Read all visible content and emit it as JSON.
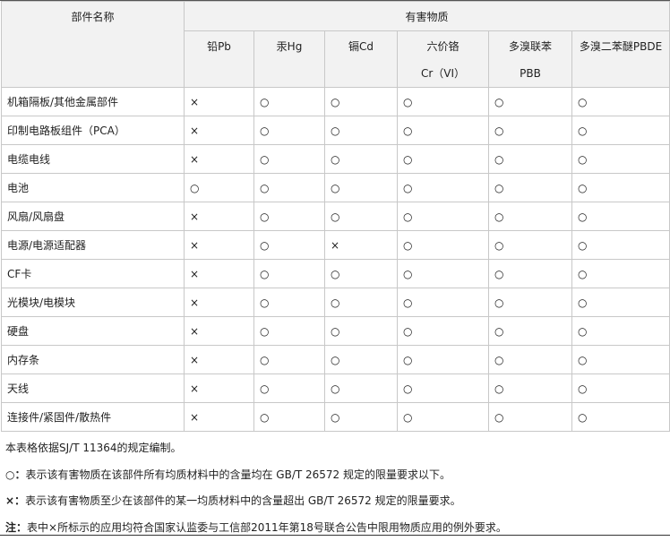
{
  "table": {
    "col_component": "部件名称",
    "col_group": "有害物质",
    "substances": [
      {
        "line1": "铅Pb",
        "line2": ""
      },
      {
        "line1": "汞Hg",
        "line2": ""
      },
      {
        "line1": "镉Cd",
        "line2": ""
      },
      {
        "line1": "六价铬",
        "line2": "Cr（VI）"
      },
      {
        "line1": "多溴联苯",
        "line2": "PBB"
      },
      {
        "line1": "多溴二苯醚PBDE",
        "line2": ""
      }
    ],
    "rows": [
      {
        "name": "机箱隔板/其他金属部件",
        "v": [
          "×",
          "○",
          "○",
          "○",
          "○",
          "○"
        ]
      },
      {
        "name": "印制电路板组件（PCA）",
        "v": [
          "×",
          "○",
          "○",
          "○",
          "○",
          "○"
        ]
      },
      {
        "name": "电缆电线",
        "v": [
          "×",
          "○",
          "○",
          "○",
          "○",
          "○"
        ]
      },
      {
        "name": "电池",
        "v": [
          "○",
          "○",
          "○",
          "○",
          "○",
          "○"
        ]
      },
      {
        "name": "风扇/风扇盘",
        "v": [
          "×",
          "○",
          "○",
          "○",
          "○",
          "○"
        ]
      },
      {
        "name": "电源/电源适配器",
        "v": [
          "×",
          "○",
          "×",
          "○",
          "○",
          "○"
        ]
      },
      {
        "name": "CF卡",
        "v": [
          "×",
          "○",
          "○",
          "○",
          "○",
          "○"
        ]
      },
      {
        "name": "光模块/电模块",
        "v": [
          "×",
          "○",
          "○",
          "○",
          "○",
          "○"
        ]
      },
      {
        "name": "硬盘",
        "v": [
          "×",
          "○",
          "○",
          "○",
          "○",
          "○"
        ]
      },
      {
        "name": "内存条",
        "v": [
          "×",
          "○",
          "○",
          "○",
          "○",
          "○"
        ]
      },
      {
        "name": "天线",
        "v": [
          "×",
          "○",
          "○",
          "○",
          "○",
          "○"
        ]
      },
      {
        "name": "连接件/紧固件/散热件",
        "v": [
          "×",
          "○",
          "○",
          "○",
          "○",
          "○"
        ]
      }
    ]
  },
  "notes": {
    "n1": "本表格依据SJ/T 11364的规定编制。",
    "n2_label": "○：",
    "n2": "表示该有害物质在该部件所有均质材料中的含量均在 GB/T 26572 规定的限量要求以下。",
    "n3_label": "×：",
    "n3": "表示该有害物质至少在该部件的某一均质材料中的含量超出 GB/T 26572 规定的限量要求。",
    "n4_label": "注：",
    "n4": "表中×所标示的应用均符合国家认监委与工信部2011年第18号联合公告中限用物质应用的例外要求。"
  }
}
